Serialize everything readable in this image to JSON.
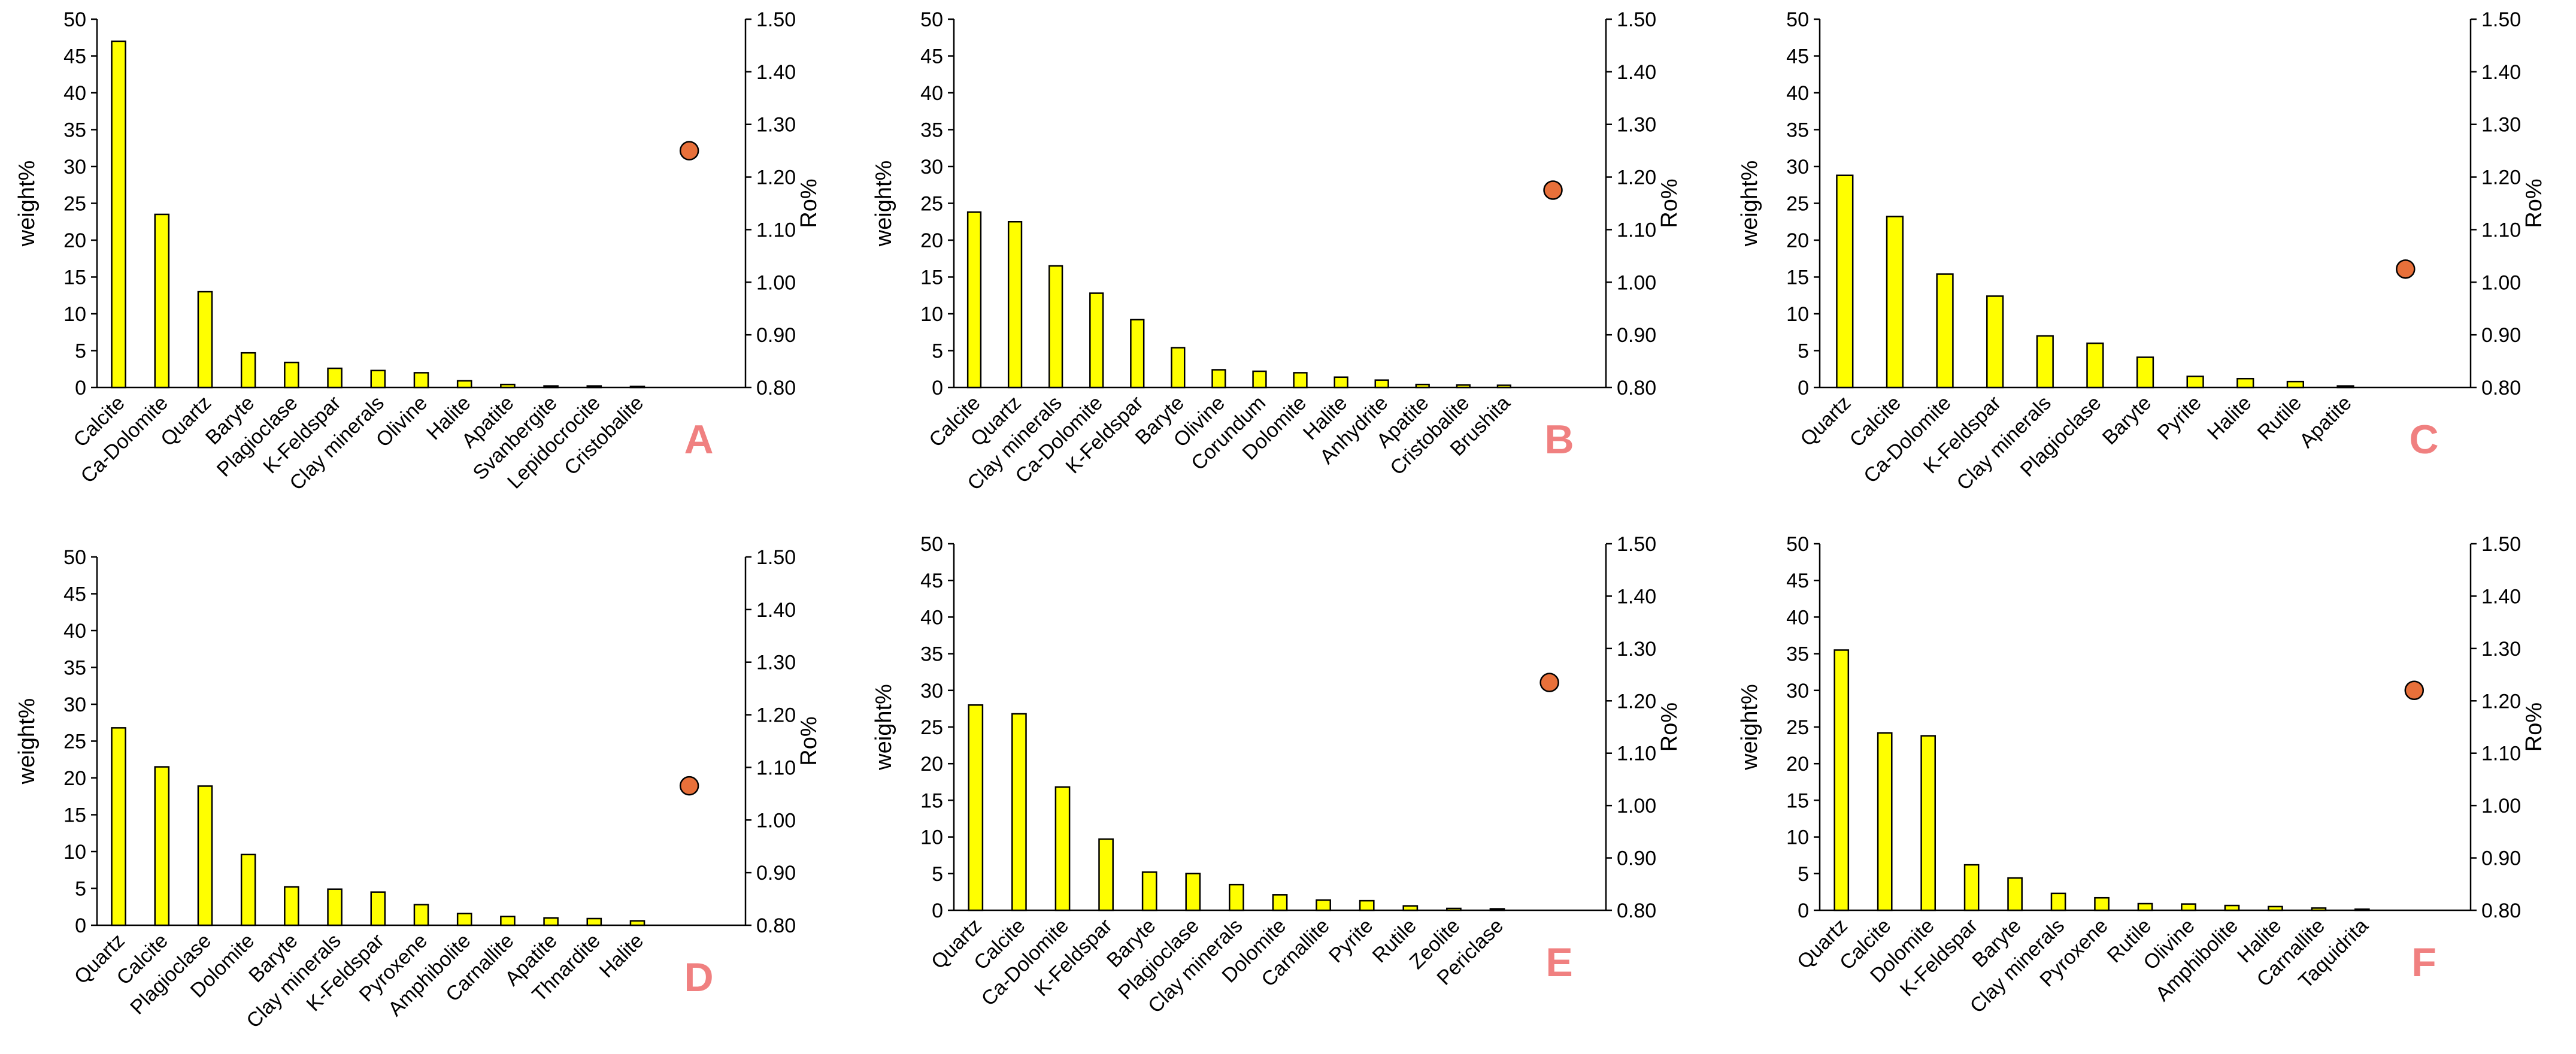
{
  "colors": {
    "bar_fill": "#ffff00",
    "point_fill": "#e8703a",
    "panel_letter": "#f08080"
  },
  "chart_data": [
    {
      "type": "bar",
      "panel": "A",
      "categories": [
        "Calcite",
        "Ca-Dolomite",
        "Quartz",
        "Baryte",
        "Plagioclase",
        "K-Feldspar",
        "Clay minerals",
        "Olivine",
        "Halite",
        "Apatite",
        "Svanbergite",
        "Lepidocrocite",
        "Cristobalite"
      ],
      "values": [
        47,
        23.5,
        13,
        4.7,
        3.4,
        2.6,
        2.3,
        2.0,
        0.9,
        0.4,
        0.2,
        0.2,
        0.15
      ],
      "ylabel": "weight%",
      "ylim": [
        0,
        50
      ],
      "yticks": [
        0,
        5,
        10,
        15,
        20,
        25,
        30,
        35,
        40,
        45,
        50
      ],
      "y2label": "Ro%",
      "y2lim": [
        0.8,
        1.5
      ],
      "y2ticks": [
        "0.80",
        "0.90",
        "1.00",
        "1.10",
        "1.20",
        "1.30",
        "1.40",
        "1.50"
      ],
      "ro_value": 1.25
    },
    {
      "type": "bar",
      "panel": "B",
      "categories": [
        "Calcite",
        "Quartz",
        "Clay minerals",
        "Ca-Dolomite",
        "K-Feldspar",
        "Baryte",
        "Olivine",
        "Corundum",
        "Dolomite",
        "Halite",
        "Anhydrite",
        "Apatite",
        "Cristobalite",
        "Brushita"
      ],
      "values": [
        23.8,
        22.5,
        16.5,
        12.8,
        9.2,
        5.4,
        2.4,
        2.2,
        2.0,
        1.4,
        1.0,
        0.4,
        0.35,
        0.3
      ],
      "ylabel": "weight%",
      "ylim": [
        0,
        50
      ],
      "yticks": [
        0,
        5,
        10,
        15,
        20,
        25,
        30,
        35,
        40,
        45,
        50
      ],
      "y2label": "Ro%",
      "y2lim": [
        0.8,
        1.5
      ],
      "y2ticks": [
        "0.80",
        "0.90",
        "1.00",
        "1.10",
        "1.20",
        "1.30",
        "1.40",
        "1.50"
      ],
      "ro_value": 1.175
    },
    {
      "type": "bar",
      "panel": "C",
      "categories": [
        "Quartz",
        "Calcite",
        "Ca-Dolomite",
        "K-Feldspar",
        "Clay minerals",
        "Plagioclase",
        "Baryte",
        "Pyrite",
        "Halite",
        "Rutile",
        "Apatite"
      ],
      "values": [
        28.8,
        23.2,
        15.4,
        12.4,
        7.0,
        6.0,
        4.1,
        1.5,
        1.2,
        0.8,
        0.2
      ],
      "ylabel": "weight%",
      "ylim": [
        0,
        50
      ],
      "yticks": [
        0,
        5,
        10,
        15,
        20,
        25,
        30,
        35,
        40,
        45,
        50
      ],
      "y2label": "Ro%",
      "y2lim": [
        0.8,
        1.5
      ],
      "y2ticks": [
        "0.80",
        "0.90",
        "1.00",
        "1.10",
        "1.20",
        "1.30",
        "1.40",
        "1.50"
      ],
      "ro_value": 1.025
    },
    {
      "type": "bar",
      "panel": "D",
      "categories": [
        "Quartz",
        "Calcite",
        "Plagioclase",
        "Dolomite",
        "Baryte",
        "Clay minerals",
        "K-Feldspar",
        "Pyroxene",
        "Amphibolite",
        "Carnallite",
        "Apatite",
        "Thnardite",
        "Halite"
      ],
      "values": [
        26.8,
        21.5,
        18.9,
        9.6,
        5.2,
        4.9,
        4.5,
        2.8,
        1.6,
        1.2,
        1.0,
        0.9,
        0.6
      ],
      "ylabel": "weight%",
      "ylim": [
        0,
        50
      ],
      "yticks": [
        0,
        5,
        10,
        15,
        20,
        25,
        30,
        35,
        40,
        45,
        50
      ],
      "y2label": "Ro%",
      "y2lim": [
        0.8,
        1.5
      ],
      "y2ticks": [
        "0.80",
        "0.90",
        "1.00",
        "1.10",
        "1.20",
        "1.30",
        "1.40",
        "1.50"
      ],
      "ro_value": 1.065
    },
    {
      "type": "bar",
      "panel": "E",
      "categories": [
        "Quartz",
        "Calcite",
        "Ca-Dolomite",
        "K-Feldspar",
        "Baryte",
        "Plagioclase",
        "Clay minerals",
        "Dolomite",
        "Carnallite",
        "Pyrite",
        "Rutile",
        "Zeolite",
        "Periclase"
      ],
      "values": [
        28.0,
        26.8,
        16.8,
        9.7,
        5.2,
        5.0,
        3.5,
        2.1,
        1.4,
        1.3,
        0.6,
        0.25,
        0.2
      ],
      "ylabel": "weight%",
      "ylim": [
        0,
        50
      ],
      "yticks": [
        0,
        5,
        10,
        15,
        20,
        25,
        30,
        35,
        40,
        45,
        50
      ],
      "y2label": "Ro%",
      "y2lim": [
        0.8,
        1.5
      ],
      "y2ticks": [
        "0.80",
        "0.90",
        "1.00",
        "1.10",
        "1.20",
        "1.30",
        "1.40",
        "1.50"
      ],
      "ro_value": 1.235
    },
    {
      "type": "bar",
      "panel": "F",
      "categories": [
        "Quartz",
        "Calcite",
        "Dolomite",
        "K-Feldspar",
        "Baryte",
        "Clay minerals",
        "Pyroxene",
        "Rutile",
        "Olivine",
        "Amphibolite",
        "Halite",
        "Carnallite",
        "Taquidrita"
      ],
      "values": [
        35.5,
        24.2,
        23.8,
        6.2,
        4.4,
        2.3,
        1.7,
        0.9,
        0.85,
        0.65,
        0.5,
        0.3,
        0.15
      ],
      "ylabel": "weight%",
      "ylim": [
        0,
        50
      ],
      "yticks": [
        0,
        5,
        10,
        15,
        20,
        25,
        30,
        35,
        40,
        45,
        50
      ],
      "y2label": "Ro%",
      "y2lim": [
        0.8,
        1.5
      ],
      "y2ticks": [
        "0.80",
        "0.90",
        "1.00",
        "1.10",
        "1.20",
        "1.30",
        "1.40",
        "1.50"
      ],
      "ro_value": 1.22
    }
  ]
}
